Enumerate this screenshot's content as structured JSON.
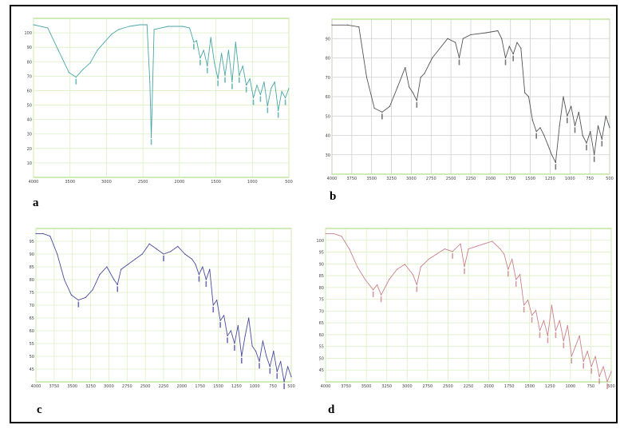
{
  "figure": {
    "panels": [
      {
        "label": "a",
        "color": "#4aa6a6",
        "grid": "#dcefc4",
        "border": "#9ed86a"
      },
      {
        "label": "b",
        "color": "#555555",
        "grid": "#cfcfcf",
        "border": "#9ed86a"
      },
      {
        "label": "c",
        "color": "#4b4b9e",
        "grid": "#dcefc4",
        "border": "#9ed86a"
      },
      {
        "label": "d",
        "color": "#c9828a",
        "grid": "#dcefc4",
        "border": "#9ed86a"
      }
    ]
  },
  "chart_data": [
    {
      "type": "line",
      "panel": "a",
      "x_reversed": true,
      "xlim": [
        4000,
        400
      ],
      "ylim": [
        0,
        100
      ],
      "x_ticks": [
        "4000",
        "3500",
        "3000",
        "2500",
        "2000",
        "1500",
        "1000",
        "500"
      ],
      "y_ticks": [
        "100",
        "90",
        "80",
        "70",
        "60",
        "50",
        "40",
        "30",
        "20",
        "10"
      ],
      "grid": true,
      "series": [
        {
          "x": [
            4000,
            3800,
            3650,
            3500,
            3400,
            3300,
            3200,
            3100,
            3000,
            2900,
            2800,
            2650,
            2500,
            2400,
            2360,
            2340,
            2300,
            2200,
            2100,
            1900,
            1800,
            1740,
            1700,
            1650,
            1600,
            1550,
            1500,
            1450,
            1400,
            1350,
            1300,
            1250,
            1200,
            1150,
            1100,
            1050,
            1000,
            950,
            900,
            850,
            800,
            750,
            700,
            650,
            600,
            550,
            500,
            450,
            400
          ],
          "y": [
            96,
            94,
            80,
            66,
            63,
            68,
            72,
            80,
            85,
            90,
            93,
            95,
            96,
            96,
            60,
            25,
            93,
            94,
            95,
            95,
            94,
            85,
            86,
            75,
            80,
            70,
            88,
            72,
            62,
            78,
            64,
            80,
            60,
            85,
            64,
            70,
            58,
            62,
            50,
            58,
            52,
            60,
            45,
            56,
            60,
            42,
            54,
            50,
            56
          ]
        }
      ]
    },
    {
      "type": "line",
      "panel": "b",
      "x_reversed": true,
      "xlim": [
        4000,
        400
      ],
      "ylim": [
        20,
        100
      ],
      "x_ticks": [
        "4000",
        "3750",
        "3500",
        "3250",
        "3000",
        "2750",
        "2500",
        "2250",
        "2000",
        "1750",
        "1500",
        "1250",
        "1000",
        "750",
        "500"
      ],
      "y_ticks": [
        "90",
        "80",
        "70",
        "60",
        "50",
        "40",
        "30"
      ],
      "grid": true,
      "series": [
        {
          "x": [
            4000,
            3800,
            3650,
            3550,
            3450,
            3350,
            3250,
            3150,
            3050,
            3000,
            2950,
            2900,
            2850,
            2800,
            2700,
            2500,
            2400,
            2350,
            2300,
            2200,
            2000,
            1850,
            1800,
            1750,
            1700,
            1650,
            1600,
            1550,
            1500,
            1450,
            1400,
            1350,
            1300,
            1250,
            1200,
            1150,
            1100,
            1050,
            1000,
            950,
            900,
            850,
            800,
            750,
            700,
            650,
            600,
            550,
            500,
            450,
            400
          ],
          "y": [
            97,
            97,
            96,
            70,
            54,
            52,
            55,
            65,
            75,
            65,
            62,
            58,
            70,
            72,
            80,
            90,
            88,
            80,
            90,
            92,
            93,
            94,
            90,
            80,
            86,
            82,
            88,
            85,
            62,
            60,
            48,
            42,
            44,
            40,
            35,
            30,
            26,
            45,
            60,
            50,
            55,
            45,
            52,
            40,
            36,
            42,
            30,
            45,
            38,
            50,
            44
          ]
        }
      ]
    },
    {
      "type": "line",
      "panel": "c",
      "x_reversed": true,
      "xlim": [
        4000,
        400
      ],
      "ylim": [
        40,
        100
      ],
      "x_ticks": [
        "4000",
        "3750",
        "3500",
        "3250",
        "3000",
        "2750",
        "2500",
        "2250",
        "2000",
        "1750",
        "1500",
        "1250",
        "1000",
        "750",
        "500"
      ],
      "y_ticks": [
        "95",
        "90",
        "85",
        "80",
        "75",
        "70",
        "65",
        "60",
        "55",
        "50",
        "45"
      ],
      "grid": true,
      "series": [
        {
          "x": [
            4000,
            3900,
            3800,
            3700,
            3600,
            3500,
            3400,
            3300,
            3200,
            3100,
            3000,
            2900,
            2850,
            2800,
            2700,
            2600,
            2500,
            2400,
            2300,
            2200,
            2100,
            2000,
            1900,
            1800,
            1750,
            1700,
            1650,
            1600,
            1550,
            1500,
            1450,
            1400,
            1350,
            1300,
            1250,
            1200,
            1150,
            1100,
            1050,
            1000,
            950,
            900,
            850,
            800,
            750,
            700,
            650,
            600,
            550,
            500,
            450,
            400
          ],
          "y": [
            98,
            98,
            97,
            90,
            80,
            74,
            72,
            73,
            76,
            82,
            85,
            80,
            78,
            84,
            86,
            88,
            90,
            94,
            92,
            90,
            91,
            93,
            90,
            88,
            86,
            82,
            85,
            80,
            84,
            70,
            72,
            64,
            66,
            58,
            60,
            55,
            62,
            50,
            58,
            65,
            54,
            52,
            48,
            56,
            50,
            46,
            52,
            44,
            48,
            40,
            46,
            42
          ]
        }
      ]
    },
    {
      "type": "line",
      "panel": "d",
      "x_reversed": true,
      "xlim": [
        4000,
        400
      ],
      "ylim": [
        40,
        100
      ],
      "x_ticks": [
        "4000",
        "3750",
        "3500",
        "3250",
        "3000",
        "2750",
        "2500",
        "2250",
        "2000",
        "1750",
        "1500",
        "1250",
        "1000",
        "750",
        "500"
      ],
      "y_ticks": [
        "100",
        "95",
        "90",
        "85",
        "80",
        "75",
        "70",
        "65",
        "60",
        "55",
        "50",
        "45"
      ],
      "grid": true,
      "series": [
        {
          "x": [
            4000,
            3900,
            3800,
            3700,
            3600,
            3500,
            3400,
            3350,
            3300,
            3200,
            3100,
            3000,
            2900,
            2850,
            2800,
            2700,
            2600,
            2500,
            2400,
            2300,
            2250,
            2200,
            2100,
            2000,
            1900,
            1800,
            1750,
            1700,
            1650,
            1600,
            1550,
            1500,
            1450,
            1400,
            1350,
            1300,
            1250,
            1200,
            1150,
            1100,
            1050,
            1000,
            950,
            900,
            850,
            800,
            750,
            700,
            650,
            600,
            550,
            500,
            450,
            400
          ],
          "y": [
            98,
            98,
            97,
            92,
            85,
            80,
            76,
            78,
            74,
            80,
            84,
            86,
            82,
            78,
            85,
            88,
            90,
            92,
            91,
            94,
            85,
            92,
            93,
            94,
            95,
            92,
            90,
            84,
            88,
            80,
            82,
            70,
            72,
            66,
            68,
            60,
            64,
            58,
            70,
            60,
            64,
            56,
            62,
            50,
            54,
            58,
            48,
            52,
            46,
            50,
            42,
            46,
            40,
            44
          ]
        }
      ]
    }
  ]
}
